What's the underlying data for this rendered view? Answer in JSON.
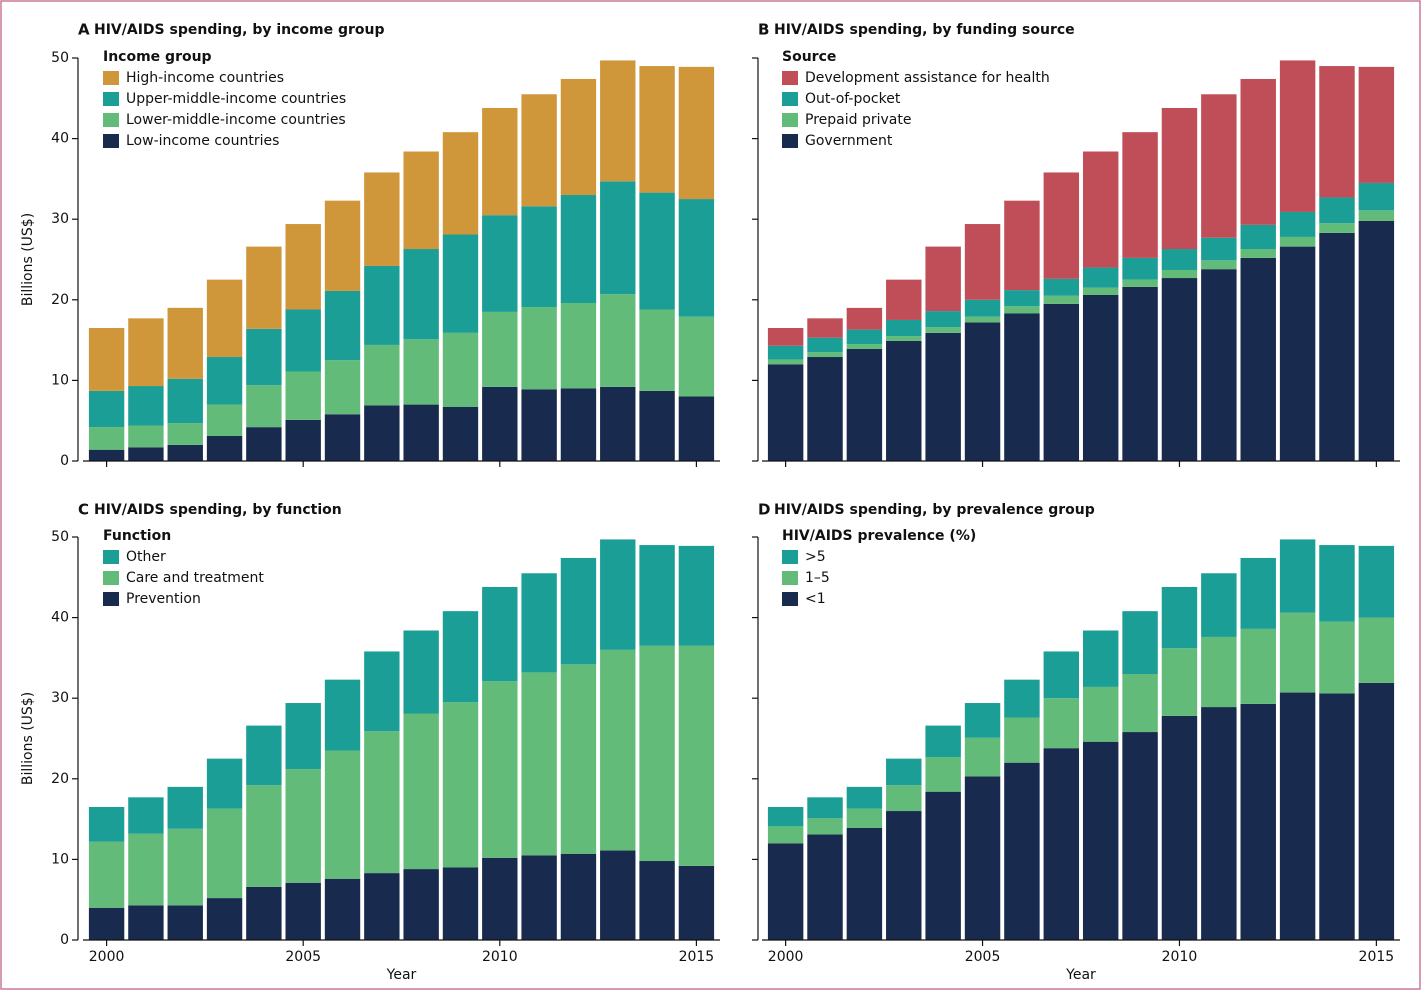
{
  "chart_data": [
    {
      "type": "bar",
      "stacked": true,
      "panel_label": "A",
      "title": "HIV/AIDS spending, by income group",
      "legend_title": "Income group",
      "legend": "upper left",
      "ylabel": "Billions (US$)",
      "xtick_labels": false,
      "ytick_labels": true,
      "x": [
        2000,
        2001,
        2002,
        2003,
        2004,
        2005,
        2006,
        2007,
        2008,
        2009,
        2010,
        2011,
        2012,
        2013,
        2014,
        2015
      ],
      "xlim": [
        1999.4,
        2015.6
      ],
      "xticks": [
        2000,
        2005,
        2010,
        2015
      ],
      "ylim": [
        0,
        50
      ],
      "yticks": [
        0,
        10,
        20,
        30,
        40,
        50
      ],
      "series": [
        {
          "name": "High-income countries",
          "color": "#d0963a",
          "values": [
            7.8,
            8.4,
            8.8,
            9.6,
            10.2,
            10.6,
            11.2,
            11.6,
            12.1,
            12.7,
            13.3,
            13.9,
            14.4,
            15.0,
            15.7,
            16.4
          ]
        },
        {
          "name": "Upper-middle-income countries",
          "color": "#1b9e96",
          "values": [
            4.5,
            4.9,
            5.5,
            5.9,
            7.0,
            7.7,
            8.6,
            9.8,
            11.2,
            12.2,
            12.0,
            12.5,
            13.4,
            14.0,
            14.5,
            14.6
          ]
        },
        {
          "name": "Lower-middle-income countries",
          "color": "#62bb78",
          "values": [
            2.8,
            2.7,
            2.7,
            3.9,
            5.2,
            6.0,
            6.7,
            7.5,
            8.1,
            9.2,
            9.3,
            10.2,
            10.6,
            11.5,
            10.1,
            9.9
          ]
        },
        {
          "name": "Low-income countries",
          "color": "#182a4e",
          "values": [
            1.4,
            1.7,
            2.0,
            3.1,
            4.2,
            5.1,
            5.8,
            6.9,
            7.0,
            6.7,
            9.2,
            8.9,
            9.0,
            9.2,
            8.7,
            8.0
          ]
        }
      ]
    },
    {
      "type": "bar",
      "stacked": true,
      "panel_label": "B",
      "title": "HIV/AIDS spending, by funding source",
      "legend_title": "Source",
      "legend": "upper left",
      "xtick_labels": false,
      "ytick_labels": false,
      "x": [
        2000,
        2001,
        2002,
        2003,
        2004,
        2005,
        2006,
        2007,
        2008,
        2009,
        2010,
        2011,
        2012,
        2013,
        2014,
        2015
      ],
      "xlim": [
        1999.4,
        2015.6
      ],
      "xticks": [
        2000,
        2005,
        2010,
        2015
      ],
      "ylim": [
        0,
        50
      ],
      "yticks": [
        0,
        10,
        20,
        30,
        40,
        50
      ],
      "series": [
        {
          "name": "Development assistance for health",
          "color": "#c04e58",
          "values": [
            2.2,
            2.4,
            2.7,
            5.0,
            8.0,
            9.4,
            11.1,
            13.2,
            14.4,
            15.6,
            17.5,
            17.8,
            18.1,
            18.8,
            16.3,
            14.4
          ]
        },
        {
          "name": "Out-of-pocket",
          "color": "#1b9e96",
          "values": [
            1.7,
            1.8,
            1.8,
            2.0,
            2.0,
            2.1,
            2.0,
            2.1,
            2.5,
            2.7,
            2.6,
            2.8,
            3.0,
            3.1,
            3.2,
            3.4
          ]
        },
        {
          "name": "Prepaid private",
          "color": "#62bb78",
          "values": [
            0.6,
            0.6,
            0.6,
            0.6,
            0.7,
            0.7,
            0.9,
            1.0,
            0.9,
            0.9,
            1.0,
            1.1,
            1.1,
            1.2,
            1.2,
            1.3
          ]
        },
        {
          "name": "Government",
          "color": "#182a4e",
          "values": [
            12.0,
            12.9,
            13.9,
            14.9,
            15.9,
            17.2,
            18.3,
            19.5,
            20.6,
            21.6,
            22.7,
            23.8,
            25.2,
            26.6,
            28.3,
            29.8
          ]
        }
      ]
    },
    {
      "type": "bar",
      "stacked": true,
      "panel_label": "C",
      "title": "HIV/AIDS spending, by function",
      "legend_title": "Function",
      "legend": "upper left",
      "ylabel": "Billions (US$)",
      "xlabel": "Year",
      "xtick_labels": true,
      "ytick_labels": true,
      "x": [
        2000,
        2001,
        2002,
        2003,
        2004,
        2005,
        2006,
        2007,
        2008,
        2009,
        2010,
        2011,
        2012,
        2013,
        2014,
        2015
      ],
      "xlim": [
        1999.4,
        2015.6
      ],
      "xticks": [
        2000,
        2005,
        2010,
        2015
      ],
      "ylim": [
        0,
        50
      ],
      "yticks": [
        0,
        10,
        20,
        30,
        40,
        50
      ],
      "series": [
        {
          "name": "Other",
          "color": "#1b9e96",
          "values": [
            4.3,
            4.5,
            5.2,
            6.2,
            7.4,
            8.2,
            8.8,
            9.9,
            10.3,
            11.3,
            11.7,
            12.3,
            13.2,
            13.7,
            12.5,
            12.4
          ]
        },
        {
          "name": "Care and treatment",
          "color": "#62bb78",
          "values": [
            8.2,
            8.9,
            9.5,
            11.1,
            12.6,
            14.1,
            15.9,
            17.6,
            19.3,
            20.5,
            21.9,
            22.7,
            23.5,
            24.9,
            26.7,
            27.3
          ]
        },
        {
          "name": "Prevention",
          "color": "#182a4e",
          "values": [
            4.0,
            4.3,
            4.3,
            5.2,
            6.6,
            7.1,
            7.6,
            8.3,
            8.8,
            9.0,
            10.2,
            10.5,
            10.7,
            11.1,
            9.8,
            9.2
          ]
        }
      ]
    },
    {
      "type": "bar",
      "stacked": true,
      "panel_label": "D",
      "title": "HIV/AIDS spending, by prevalence group",
      "legend_title": "HIV/AIDS prevalence (%)",
      "legend": "upper left",
      "xlabel": "Year",
      "xtick_labels": true,
      "ytick_labels": false,
      "x": [
        2000,
        2001,
        2002,
        2003,
        2004,
        2005,
        2006,
        2007,
        2008,
        2009,
        2010,
        2011,
        2012,
        2013,
        2014,
        2015
      ],
      "xlim": [
        1999.4,
        2015.6
      ],
      "xticks": [
        2000,
        2005,
        2010,
        2015
      ],
      "ylim": [
        0,
        50
      ],
      "yticks": [
        0,
        10,
        20,
        30,
        40,
        50
      ],
      "series": [
        {
          "name": ">5",
          "color": "#1b9e96",
          "values": [
            2.4,
            2.6,
            2.7,
            3.3,
            3.9,
            4.3,
            4.7,
            5.8,
            7.0,
            7.8,
            7.6,
            7.9,
            8.8,
            9.1,
            9.5,
            8.9
          ]
        },
        {
          "name": "1–5",
          "color": "#62bb78",
          "values": [
            2.1,
            2.0,
            2.4,
            3.2,
            4.3,
            4.8,
            5.6,
            6.2,
            6.8,
            7.2,
            8.4,
            8.7,
            9.3,
            9.9,
            8.9,
            8.1
          ]
        },
        {
          "name": "<1",
          "color": "#182a4e",
          "values": [
            12.0,
            13.1,
            13.9,
            16.0,
            18.4,
            20.3,
            22.0,
            23.8,
            24.6,
            25.8,
            27.8,
            28.9,
            29.3,
            30.7,
            30.6,
            31.9
          ]
        }
      ]
    }
  ]
}
